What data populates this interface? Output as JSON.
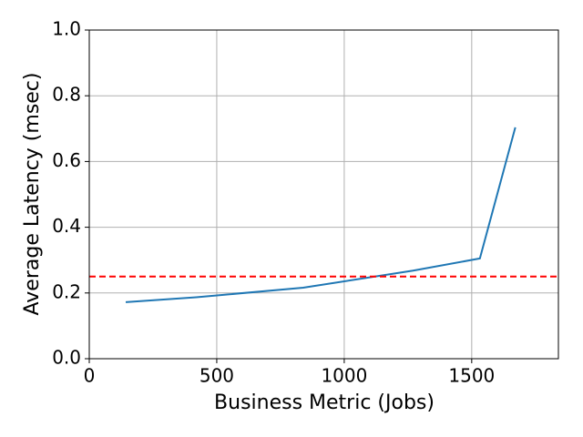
{
  "chart_data": {
    "type": "line",
    "xlabel": "Business Metric (Jobs)",
    "ylabel": "Average Latency (msec)",
    "x": [
      143,
      420,
      839,
      1270,
      1532,
      1671
    ],
    "series": [
      {
        "color": "#1f77b4",
        "values": [
          0.172,
          0.187,
          0.216,
          0.268,
          0.305,
          0.704
        ]
      }
    ],
    "hline": {
      "value": 0.25,
      "color": "#ff0000",
      "dashed": true
    },
    "xlim": [
      0,
      1840
    ],
    "xticks": [
      0,
      500,
      1000,
      1500
    ],
    "ylim": [
      0,
      1.0
    ],
    "yticks": [
      {
        "value": 0,
        "label": "0.0"
      },
      0.2,
      0.4,
      0.6,
      0.8,
      {
        "value": 1.0,
        "label": "1.0"
      }
    ],
    "grid": true
  }
}
